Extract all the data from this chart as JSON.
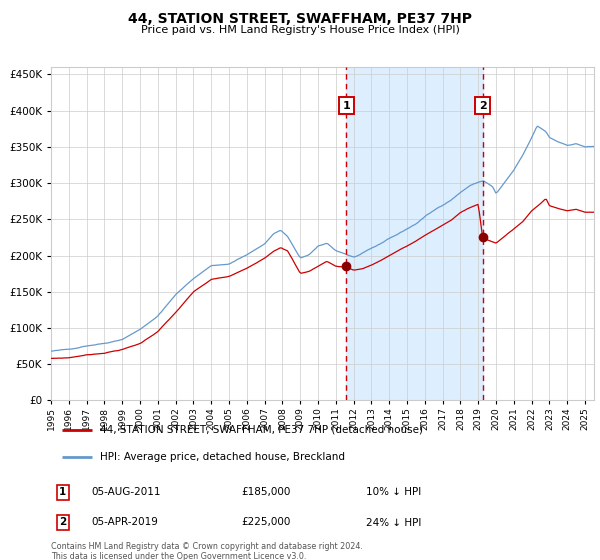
{
  "title": "44, STATION STREET, SWAFFHAM, PE37 7HP",
  "subtitle": "Price paid vs. HM Land Registry's House Price Index (HPI)",
  "legend_line1": "44, STATION STREET, SWAFFHAM, PE37 7HP (detached house)",
  "legend_line2": "HPI: Average price, detached house, Breckland",
  "annotation1_label": "1",
  "annotation1_date": "05-AUG-2011",
  "annotation1_price": "£185,000",
  "annotation1_hpi": "10% ↓ HPI",
  "annotation2_label": "2",
  "annotation2_date": "05-APR-2019",
  "annotation2_price": "£225,000",
  "annotation2_hpi": "24% ↓ HPI",
  "footer": "Contains HM Land Registry data © Crown copyright and database right 2024.\nThis data is licensed under the Open Government Licence v3.0.",
  "red_color": "#cc0000",
  "blue_color": "#6699cc",
  "shade_color": "#ddeeff",
  "background_color": "#ffffff",
  "grid_color": "#cccccc",
  "ylim": [
    0,
    460000
  ],
  "xlim_start": 1995.0,
  "xlim_end": 2025.5,
  "event1_x": 2011.58,
  "event2_x": 2019.25,
  "event1_y_red": 185000,
  "event2_y_red": 225000,
  "hpi_anchors": [
    [
      1995.0,
      68000
    ],
    [
      1996.0,
      70000
    ],
    [
      1997.0,
      76000
    ],
    [
      1998.0,
      80000
    ],
    [
      1999.0,
      86000
    ],
    [
      2000.0,
      100000
    ],
    [
      2001.0,
      118000
    ],
    [
      2002.0,
      148000
    ],
    [
      2003.0,
      170000
    ],
    [
      2004.0,
      188000
    ],
    [
      2005.0,
      190000
    ],
    [
      2006.0,
      203000
    ],
    [
      2007.0,
      218000
    ],
    [
      2007.5,
      232000
    ],
    [
      2007.9,
      237000
    ],
    [
      2008.3,
      228000
    ],
    [
      2009.0,
      198000
    ],
    [
      2009.5,
      203000
    ],
    [
      2010.0,
      214000
    ],
    [
      2010.5,
      218000
    ],
    [
      2011.0,
      208000
    ],
    [
      2011.5,
      204000
    ],
    [
      2012.0,
      199000
    ],
    [
      2012.5,
      204000
    ],
    [
      2013.0,
      210000
    ],
    [
      2013.5,
      216000
    ],
    [
      2014.0,
      224000
    ],
    [
      2014.5,
      230000
    ],
    [
      2015.0,
      237000
    ],
    [
      2015.5,
      244000
    ],
    [
      2016.0,
      254000
    ],
    [
      2016.5,
      262000
    ],
    [
      2017.0,
      270000
    ],
    [
      2017.5,
      278000
    ],
    [
      2018.0,
      288000
    ],
    [
      2018.5,
      297000
    ],
    [
      2019.0,
      302000
    ],
    [
      2019.3,
      304000
    ],
    [
      2019.8,
      296000
    ],
    [
      2020.0,
      286000
    ],
    [
      2020.5,
      302000
    ],
    [
      2021.0,
      318000
    ],
    [
      2021.5,
      338000
    ],
    [
      2022.0,
      362000
    ],
    [
      2022.3,
      378000
    ],
    [
      2022.8,
      370000
    ],
    [
      2023.0,
      362000
    ],
    [
      2023.5,
      356000
    ],
    [
      2024.0,
      352000
    ],
    [
      2024.5,
      354000
    ],
    [
      2025.0,
      350000
    ]
  ],
  "red_anchors": [
    [
      1995.0,
      58000
    ],
    [
      1996.0,
      59000
    ],
    [
      1997.0,
      63000
    ],
    [
      1998.0,
      66000
    ],
    [
      1999.0,
      71000
    ],
    [
      2000.0,
      79000
    ],
    [
      2001.0,
      96000
    ],
    [
      2002.0,
      122000
    ],
    [
      2003.0,
      150000
    ],
    [
      2004.0,
      167000
    ],
    [
      2005.0,
      171000
    ],
    [
      2006.0,
      182000
    ],
    [
      2007.0,
      197000
    ],
    [
      2007.5,
      207000
    ],
    [
      2007.9,
      212000
    ],
    [
      2008.3,
      207000
    ],
    [
      2009.0,
      176000
    ],
    [
      2009.5,
      179000
    ],
    [
      2010.0,
      186000
    ],
    [
      2010.5,
      193000
    ],
    [
      2011.0,
      186000
    ],
    [
      2011.58,
      185000
    ],
    [
      2012.0,
      181000
    ],
    [
      2012.5,
      183000
    ],
    [
      2013.0,
      188000
    ],
    [
      2013.5,
      194000
    ],
    [
      2014.0,
      201000
    ],
    [
      2014.5,
      208000
    ],
    [
      2015.0,
      214000
    ],
    [
      2015.5,
      221000
    ],
    [
      2016.0,
      229000
    ],
    [
      2016.5,
      236000
    ],
    [
      2017.0,
      243000
    ],
    [
      2017.5,
      250000
    ],
    [
      2018.0,
      260000
    ],
    [
      2018.5,
      267000
    ],
    [
      2019.0,
      272000
    ],
    [
      2019.25,
      225000
    ],
    [
      2019.5,
      223000
    ],
    [
      2019.8,
      220000
    ],
    [
      2020.0,
      218000
    ],
    [
      2020.5,
      228000
    ],
    [
      2021.0,
      238000
    ],
    [
      2021.5,
      248000
    ],
    [
      2022.0,
      263000
    ],
    [
      2022.5,
      273000
    ],
    [
      2022.8,
      280000
    ],
    [
      2023.0,
      270000
    ],
    [
      2023.5,
      266000
    ],
    [
      2024.0,
      263000
    ],
    [
      2024.5,
      265000
    ],
    [
      2025.0,
      261000
    ]
  ]
}
